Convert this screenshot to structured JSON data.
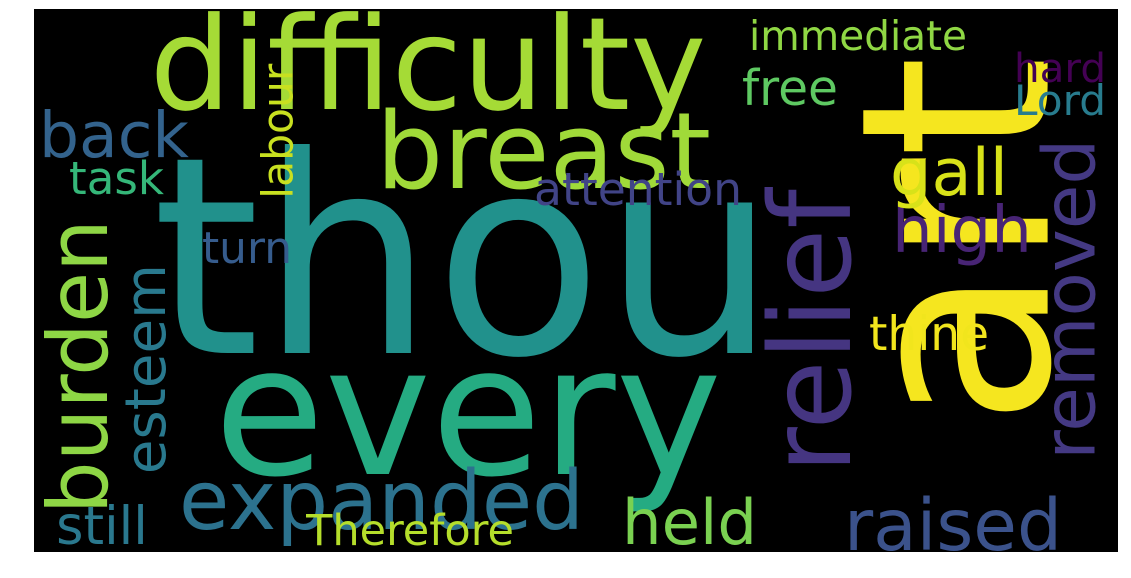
{
  "canvas": {
    "background": "#000000"
  },
  "words": [
    {
      "id": "thou",
      "text": "thou",
      "color": "#21918c",
      "orientation": "horizontal"
    },
    {
      "id": "art",
      "text": "art",
      "color": "#f5e61f",
      "orientation": "vertical"
    },
    {
      "id": "every",
      "text": "every",
      "color": "#25ab82",
      "orientation": "horizontal"
    },
    {
      "id": "difficulty",
      "text": "difficulty",
      "color": "#a5db36",
      "orientation": "horizontal"
    },
    {
      "id": "relief",
      "text": "relief",
      "color": "#453581",
      "orientation": "vertical"
    },
    {
      "id": "breast",
      "text": "breast",
      "color": "#a0da39",
      "orientation": "horizontal"
    },
    {
      "id": "expanded",
      "text": "expanded",
      "color": "#2c728e",
      "orientation": "horizontal"
    },
    {
      "id": "burden",
      "text": "burden",
      "color": "#8ed645",
      "orientation": "vertical"
    },
    {
      "id": "removed",
      "text": "removed",
      "color": "#443983",
      "orientation": "vertical"
    },
    {
      "id": "raised",
      "text": "raised",
      "color": "#3b528b",
      "orientation": "horizontal"
    },
    {
      "id": "held",
      "text": "held",
      "color": "#7ad151",
      "orientation": "horizontal"
    },
    {
      "id": "back",
      "text": "back",
      "color": "#33638d",
      "orientation": "horizontal"
    },
    {
      "id": "esteem",
      "text": "esteem",
      "color": "#29798e",
      "orientation": "vertical"
    },
    {
      "id": "high",
      "text": "high",
      "color": "#482475",
      "orientation": "horizontal"
    },
    {
      "id": "gall",
      "text": "gall",
      "color": "#d8e219",
      "orientation": "horizontal"
    },
    {
      "id": "immediate",
      "text": "immediate",
      "color": "#8fd744",
      "orientation": "horizontal"
    },
    {
      "id": "free",
      "text": "free",
      "color": "#5ec962",
      "orientation": "horizontal"
    },
    {
      "id": "hard",
      "text": "hard",
      "color": "#440154",
      "orientation": "horizontal"
    },
    {
      "id": "Lord",
      "text": "Lord",
      "color": "#287c8e",
      "orientation": "horizontal"
    },
    {
      "id": "labour",
      "text": "labour",
      "color": "#c8e020",
      "orientation": "vertical"
    },
    {
      "id": "task",
      "text": "task",
      "color": "#35b779",
      "orientation": "horizontal"
    },
    {
      "id": "attention",
      "text": "attention",
      "color": "#414487",
      "orientation": "horizontal"
    },
    {
      "id": "turn",
      "text": "turn",
      "color": "#365c8d",
      "orientation": "horizontal"
    },
    {
      "id": "thine",
      "text": "thine",
      "color": "#f1e51d",
      "orientation": "horizontal"
    },
    {
      "id": "still",
      "text": "still",
      "color": "#2a788e",
      "orientation": "horizontal"
    },
    {
      "id": "Therefore",
      "text": "Therefore",
      "color": "#b5de2b",
      "orientation": "horizontal"
    }
  ]
}
